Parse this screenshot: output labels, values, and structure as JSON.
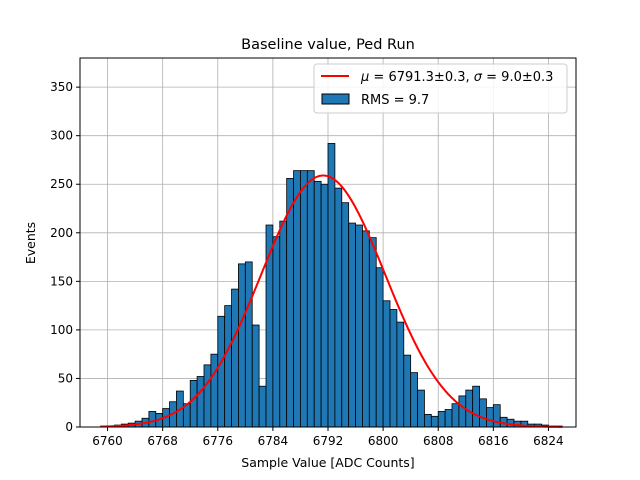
{
  "chart_data": {
    "type": "bar",
    "title": "Baseline value, Ped Run",
    "xlabel": "Sample Value [ADC Counts]",
    "ylabel": "Events",
    "xlim": [
      6756,
      6828
    ],
    "ylim": [
      0,
      380
    ],
    "xticks": [
      6760,
      6768,
      6776,
      6784,
      6792,
      6800,
      6808,
      6816,
      6824
    ],
    "yticks": [
      0,
      50,
      100,
      150,
      200,
      250,
      300,
      350
    ],
    "grid": true,
    "legend_position": "top-right",
    "colors": {
      "bars": "#1f77b4",
      "bar_edge": "#000000",
      "fit": "#ff0000"
    },
    "bins": {
      "start": 6759,
      "width": 1,
      "counts": [
        1,
        1,
        2,
        3,
        4,
        6,
        9,
        16,
        14,
        19,
        26,
        37,
        24,
        48,
        52,
        64,
        75,
        114,
        125,
        142,
        168,
        170,
        105,
        42,
        208,
        196,
        212,
        256,
        264,
        264,
        264,
        253,
        250,
        292,
        246,
        231,
        210,
        208,
        202,
        195,
        164,
        130,
        121,
        108,
        74,
        56,
        38,
        13,
        11,
        16,
        18,
        24,
        32,
        38,
        42,
        29,
        20,
        23,
        10,
        8,
        6,
        6,
        3,
        3,
        2,
        1,
        1
      ]
    },
    "fit": {
      "mu": 6791.3,
      "sigma": 9.0,
      "amplitude": 259
    },
    "series": [
      {
        "name": "$\\mu=6791.3\\pm0.3$, $\\sigma=9.0\\pm0.3$",
        "kind": "line"
      },
      {
        "name": "RMS = 9.7",
        "kind": "bar"
      }
    ]
  }
}
